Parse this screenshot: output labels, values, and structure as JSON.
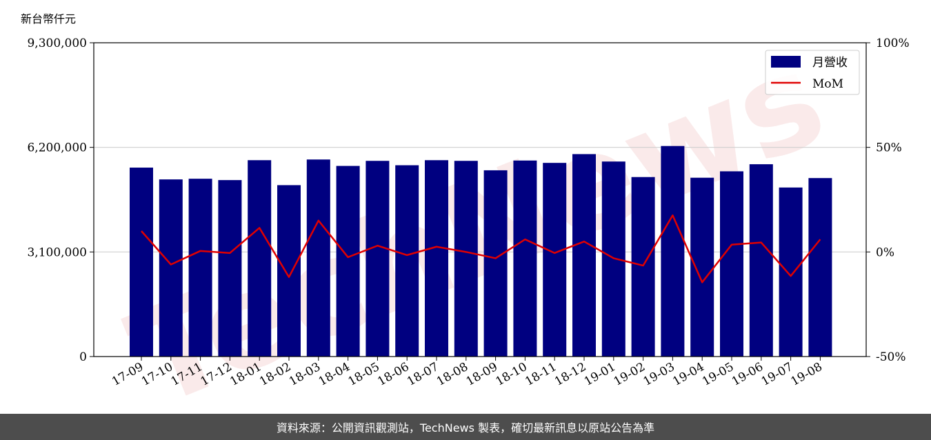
{
  "chart_data": {
    "type": "bar",
    "y_unit_label": "新台幣仟元",
    "categories": [
      "17-09",
      "17-10",
      "17-11",
      "17-12",
      "18-01",
      "18-02",
      "18-03",
      "18-04",
      "18-05",
      "18-06",
      "18-07",
      "18-08",
      "18-09",
      "18-10",
      "18-11",
      "18-12",
      "19-01",
      "19-02",
      "19-03",
      "19-04",
      "19-05",
      "19-06",
      "19-07",
      "19-08"
    ],
    "series": [
      {
        "name": "月營收",
        "kind": "bar",
        "axis": "left",
        "color": "#000080",
        "values": [
          5600000,
          5250000,
          5270000,
          5230000,
          5820000,
          5080000,
          5840000,
          5650000,
          5800000,
          5670000,
          5820000,
          5800000,
          5520000,
          5810000,
          5740000,
          6000000,
          5780000,
          5320000,
          6240000,
          5300000,
          5490000,
          5700000,
          5010000,
          5290000
        ]
      },
      {
        "name": "MoM",
        "kind": "line",
        "axis": "right",
        "color": "#e00000",
        "values": [
          10,
          -6,
          0.5,
          -0.5,
          11.5,
          -12,
          15,
          -2.5,
          3,
          -1.5,
          2.5,
          0,
          -3,
          6,
          -0.5,
          5,
          -3,
          -6.5,
          17.5,
          -14.5,
          3.5,
          4.5,
          -11.5,
          6
        ]
      }
    ],
    "left_axis": {
      "min": 0,
      "max": 9300000,
      "ticks": [
        0,
        3100000,
        6200000,
        9300000
      ],
      "tick_labels": [
        "0",
        "3,100,000",
        "6,200,000",
        "9,300,000"
      ]
    },
    "right_axis": {
      "min": -50,
      "max": 100,
      "ticks": [
        -50,
        0,
        50,
        100
      ],
      "tick_labels": [
        "-50%",
        "0%",
        "50%",
        "100%"
      ]
    },
    "grid": "horizontal",
    "legend_position": "top-right"
  },
  "watermark": "TechNews",
  "footer": {
    "source_text": "資料來源：公開資訊觀測站，TechNews 製表，確切最新訊息以原站公告為準"
  }
}
